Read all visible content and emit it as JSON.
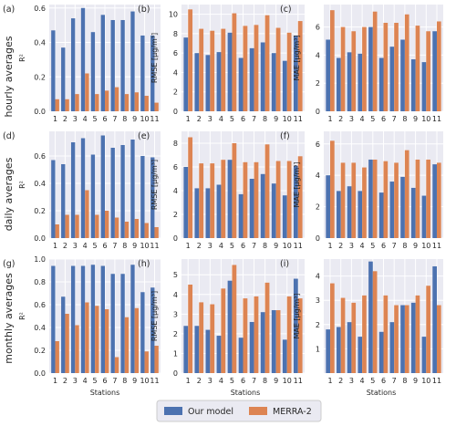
{
  "colors": {
    "series": [
      "#4c72b0",
      "#dd8452"
    ],
    "plot_bg": "#eaeaf2",
    "grid": "#ffffff"
  },
  "row_labels": [
    "hourly averages",
    "daily averages",
    "monthly averages"
  ],
  "x_axis_label": "Stations",
  "legend": [
    "Our model",
    "MERRA-2"
  ],
  "chart_data": [
    {
      "type": "bar",
      "panel_label": "(a)",
      "ylabel": "R²",
      "ylim": [
        0,
        0.62
      ],
      "yticks": [
        0.0,
        0.2,
        0.4,
        0.6
      ],
      "categories": [
        "1",
        "2",
        "3",
        "4",
        "5",
        "6",
        "7",
        "8",
        "9",
        "10",
        "11"
      ],
      "series": [
        {
          "name": "Our model",
          "values": [
            0.47,
            0.37,
            0.54,
            0.6,
            0.46,
            0.56,
            0.53,
            0.53,
            0.58,
            0.44,
            0.44
          ]
        },
        {
          "name": "MERRA-2",
          "values": [
            0.07,
            0.07,
            0.1,
            0.22,
            0.1,
            0.12,
            0.14,
            0.1,
            0.11,
            0.09,
            0.05
          ]
        }
      ]
    },
    {
      "type": "bar",
      "panel_label": "(b)",
      "ylabel": "RMSE [μg/m³]",
      "ylim": [
        0,
        11
      ],
      "yticks": [
        0,
        2,
        4,
        6,
        8,
        10
      ],
      "categories": [
        "1",
        "2",
        "3",
        "4",
        "5",
        "6",
        "7",
        "8",
        "9",
        "10",
        "11"
      ],
      "series": [
        {
          "name": "Our model",
          "values": [
            7.6,
            6.0,
            5.8,
            6.1,
            8.1,
            5.5,
            6.5,
            7.1,
            6.0,
            5.2,
            7.8
          ]
        },
        {
          "name": "MERRA-2",
          "values": [
            10.5,
            8.5,
            8.3,
            8.5,
            10.1,
            8.8,
            8.9,
            9.9,
            8.6,
            8.1,
            9.3
          ]
        }
      ]
    },
    {
      "type": "bar",
      "panel_label": "(c)",
      "ylabel": "MAE [μg/m³]",
      "ylim": [
        0,
        7.6
      ],
      "yticks": [
        0,
        2,
        4,
        6
      ],
      "categories": [
        "1",
        "2",
        "3",
        "4",
        "5",
        "6",
        "7",
        "8",
        "9",
        "10",
        "11"
      ],
      "series": [
        {
          "name": "Our model",
          "values": [
            5.1,
            3.8,
            4.2,
            4.1,
            6.0,
            3.8,
            4.6,
            5.1,
            3.7,
            3.5,
            5.7
          ]
        },
        {
          "name": "MERRA-2",
          "values": [
            7.2,
            6.0,
            5.7,
            6.0,
            7.1,
            6.3,
            6.3,
            6.9,
            6.1,
            5.7,
            6.4
          ]
        }
      ]
    },
    {
      "type": "bar",
      "panel_label": "(d)",
      "ylabel": "R²",
      "ylim": [
        0,
        0.78
      ],
      "yticks": [
        0.0,
        0.2,
        0.4,
        0.6
      ],
      "categories": [
        "1",
        "2",
        "3",
        "4",
        "5",
        "6",
        "7",
        "8",
        "9",
        "10",
        "11"
      ],
      "series": [
        {
          "name": "Our model",
          "values": [
            0.57,
            0.54,
            0.7,
            0.73,
            0.61,
            0.75,
            0.66,
            0.68,
            0.72,
            0.6,
            0.59
          ]
        },
        {
          "name": "MERRA-2",
          "values": [
            0.1,
            0.17,
            0.17,
            0.35,
            0.17,
            0.2,
            0.15,
            0.12,
            0.14,
            0.11,
            0.08
          ]
        }
      ]
    },
    {
      "type": "bar",
      "panel_label": "(e)",
      "ylabel": "RMSE [μg/m³]",
      "ylim": [
        0,
        9
      ],
      "yticks": [
        0,
        2,
        4,
        6,
        8
      ],
      "categories": [
        "1",
        "2",
        "3",
        "4",
        "5",
        "6",
        "7",
        "8",
        "9",
        "10",
        "11"
      ],
      "series": [
        {
          "name": "Our model",
          "values": [
            6.0,
            4.2,
            4.2,
            4.5,
            6.6,
            3.7,
            5.0,
            5.4,
            4.6,
            3.6,
            6.1
          ]
        },
        {
          "name": "MERRA-2",
          "values": [
            8.5,
            6.3,
            6.3,
            6.6,
            8.0,
            6.4,
            6.4,
            7.9,
            6.5,
            6.5,
            6.9
          ]
        }
      ]
    },
    {
      "type": "bar",
      "panel_label": "(f)",
      "ylabel": "MAE [μg/m³]",
      "ylim": [
        0,
        6.8
      ],
      "yticks": [
        0,
        2,
        4,
        6
      ],
      "categories": [
        "1",
        "2",
        "3",
        "4",
        "5",
        "6",
        "7",
        "8",
        "9",
        "10",
        "11"
      ],
      "series": [
        {
          "name": "Our model",
          "values": [
            4.0,
            3.0,
            3.3,
            3.0,
            5.0,
            2.9,
            3.6,
            3.9,
            3.2,
            2.7,
            4.7
          ]
        },
        {
          "name": "MERRA-2",
          "values": [
            6.2,
            4.8,
            4.8,
            4.5,
            5.0,
            4.9,
            4.8,
            5.6,
            5.0,
            5.0,
            4.8
          ]
        }
      ]
    },
    {
      "type": "bar",
      "panel_label": "(g)",
      "ylabel": "R²",
      "ylim": [
        0,
        1.0
      ],
      "yticks": [
        0.0,
        0.2,
        0.4,
        0.6,
        0.8,
        1.0
      ],
      "categories": [
        "1",
        "2",
        "3",
        "4",
        "5",
        "6",
        "7",
        "8",
        "9",
        "10",
        "11"
      ],
      "series": [
        {
          "name": "Our model",
          "values": [
            0.94,
            0.67,
            0.94,
            0.94,
            0.95,
            0.94,
            0.87,
            0.87,
            0.95,
            0.71,
            0.75
          ]
        },
        {
          "name": "MERRA-2",
          "values": [
            0.28,
            0.52,
            0.42,
            0.62,
            0.59,
            0.56,
            0.14,
            0.49,
            0.57,
            0.19,
            0.24
          ]
        }
      ]
    },
    {
      "type": "bar",
      "panel_label": "(h)",
      "ylabel": "RMSE [μg/m³]",
      "ylim": [
        0,
        5.8
      ],
      "yticks": [
        0,
        1,
        2,
        3,
        4,
        5
      ],
      "categories": [
        "1",
        "2",
        "3",
        "4",
        "5",
        "6",
        "7",
        "8",
        "9",
        "10",
        "11"
      ],
      "series": [
        {
          "name": "Our model",
          "values": [
            2.4,
            2.4,
            2.2,
            1.9,
            4.7,
            1.8,
            2.6,
            3.1,
            3.2,
            1.7,
            4.8
          ]
        },
        {
          "name": "MERRA-2",
          "values": [
            4.5,
            3.6,
            3.5,
            4.3,
            5.5,
            3.8,
            3.9,
            4.6,
            3.2,
            3.9,
            3.8
          ]
        }
      ]
    },
    {
      "type": "bar",
      "panel_label": "(i)",
      "ylabel": "MAE [μg/m³]",
      "ylim": [
        0,
        4.7
      ],
      "yticks": [
        1,
        2,
        3,
        4
      ],
      "categories": [
        "1",
        "2",
        "3",
        "4",
        "5",
        "6",
        "7",
        "8",
        "9",
        "10",
        "11"
      ],
      "series": [
        {
          "name": "Our model",
          "values": [
            1.8,
            1.9,
            2.1,
            1.5,
            4.6,
            1.7,
            2.1,
            2.8,
            2.9,
            1.5,
            4.4
          ]
        },
        {
          "name": "MERRA-2",
          "values": [
            3.7,
            3.1,
            2.9,
            3.2,
            4.2,
            3.2,
            2.8,
            2.8,
            3.2,
            3.6,
            2.8
          ]
        }
      ]
    }
  ]
}
